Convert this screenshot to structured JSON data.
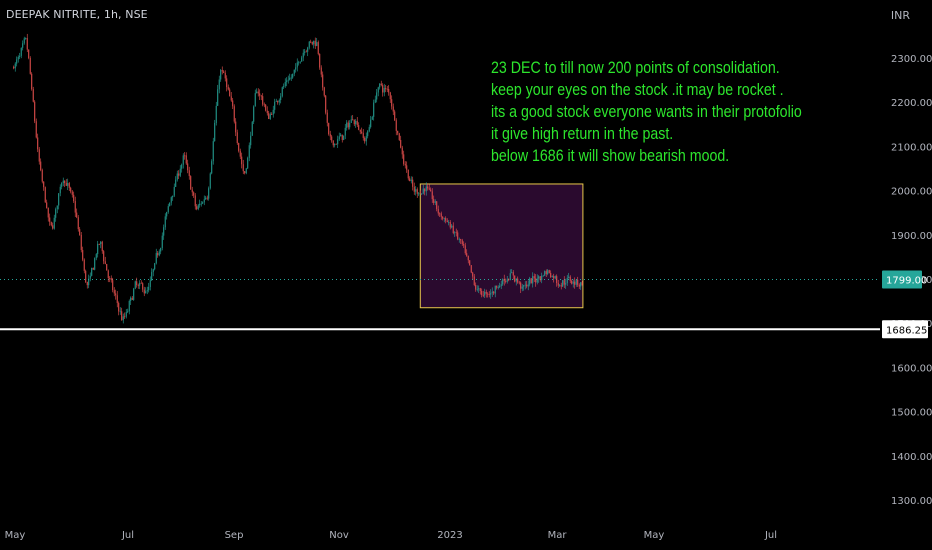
{
  "header": {
    "symbol": "DEEPAK NITRITE, 1h, NSE",
    "currency": "INR"
  },
  "note_lines": [
    "23 DEC  to till now 200 points of consolidation.",
    "keep your eyes on the stock .it may be rocket .",
    "its a good stock everyone wants in their protofolio",
    "it give high return in the past.",
    "below 1686 it will show bearish mood."
  ],
  "colors": {
    "up": "#26a69a",
    "down": "#ef5350",
    "note": "#2de62d",
    "box_border": "#e8c84a",
    "box_fill": "#2a0a2e",
    "hline": "#ffffff",
    "current_price_tag": "#26a69a"
  },
  "chart_data": {
    "type": "candlestick",
    "y_axis": {
      "ticks": [
        1300,
        1400,
        1500,
        1600,
        1700,
        1800,
        1900,
        2000,
        2100,
        2200,
        2300
      ],
      "range": [
        1270,
        2370
      ]
    },
    "x_axis": {
      "labels": [
        "May",
        "Jul",
        "Sep",
        "Nov",
        "2023",
        "Mar",
        "May",
        "Jul"
      ]
    },
    "current_price": {
      "value": 1799.0,
      "label": "1799.00"
    },
    "horizontal_line": {
      "value": 1686.25,
      "label": "1686.25"
    },
    "consolidation_box": {
      "from": "2022-12-23",
      "to": "2023-03-27",
      "top": 2015,
      "bottom": 1735
    },
    "price_path": [
      {
        "d": "2022-05-02",
        "p": 2280
      },
      {
        "d": "2022-05-09",
        "p": 2340
      },
      {
        "d": "2022-05-16",
        "p": 2060
      },
      {
        "d": "2022-05-23",
        "p": 1900
      },
      {
        "d": "2022-05-30",
        "p": 2040
      },
      {
        "d": "2022-06-06",
        "p": 1960
      },
      {
        "d": "2022-06-13",
        "p": 1770
      },
      {
        "d": "2022-06-20",
        "p": 1890
      },
      {
        "d": "2022-06-27",
        "p": 1780
      },
      {
        "d": "2022-07-04",
        "p": 1700
      },
      {
        "d": "2022-07-11",
        "p": 1790
      },
      {
        "d": "2022-07-18",
        "p": 1770
      },
      {
        "d": "2022-07-25",
        "p": 1880
      },
      {
        "d": "2022-08-01",
        "p": 2000
      },
      {
        "d": "2022-08-08",
        "p": 2080
      },
      {
        "d": "2022-08-15",
        "p": 1950
      },
      {
        "d": "2022-08-22",
        "p": 2000
      },
      {
        "d": "2022-08-29",
        "p": 2290
      },
      {
        "d": "2022-09-05",
        "p": 2180
      },
      {
        "d": "2022-09-12",
        "p": 2020
      },
      {
        "d": "2022-09-19",
        "p": 2240
      },
      {
        "d": "2022-09-26",
        "p": 2160
      },
      {
        "d": "2022-10-03",
        "p": 2230
      },
      {
        "d": "2022-10-10",
        "p": 2260
      },
      {
        "d": "2022-10-17",
        "p": 2330
      },
      {
        "d": "2022-10-24",
        "p": 2340
      },
      {
        "d": "2022-10-31",
        "p": 2100
      },
      {
        "d": "2022-11-07",
        "p": 2120
      },
      {
        "d": "2022-11-14",
        "p": 2170
      },
      {
        "d": "2022-11-21",
        "p": 2110
      },
      {
        "d": "2022-11-28",
        "p": 2240
      },
      {
        "d": "2022-12-05",
        "p": 2220
      },
      {
        "d": "2022-12-12",
        "p": 2080
      },
      {
        "d": "2022-12-19",
        "p": 1990
      },
      {
        "d": "2022-12-26",
        "p": 2010
      },
      {
        "d": "2023-01-02",
        "p": 1950
      },
      {
        "d": "2023-01-09",
        "p": 1920
      },
      {
        "d": "2023-01-16",
        "p": 1870
      },
      {
        "d": "2023-01-23",
        "p": 1780
      },
      {
        "d": "2023-01-30",
        "p": 1760
      },
      {
        "d": "2023-02-06",
        "p": 1790
      },
      {
        "d": "2023-02-13",
        "p": 1810
      },
      {
        "d": "2023-02-20",
        "p": 1780
      },
      {
        "d": "2023-02-27",
        "p": 1800
      },
      {
        "d": "2023-03-06",
        "p": 1820
      },
      {
        "d": "2023-03-13",
        "p": 1790
      },
      {
        "d": "2023-03-20",
        "p": 1800
      },
      {
        "d": "2023-03-27",
        "p": 1790
      }
    ]
  }
}
